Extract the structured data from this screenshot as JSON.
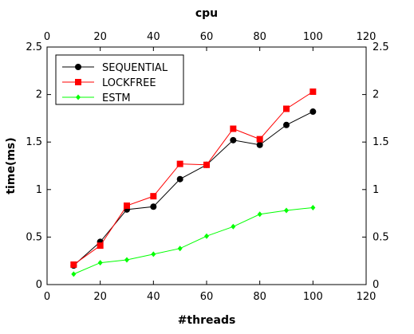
{
  "chart_data": {
    "type": "line",
    "title": "cpu",
    "xlabel": "#threads",
    "ylabel": "time(ms)",
    "xlim": [
      0,
      120
    ],
    "ylim": [
      0,
      2.5
    ],
    "xticks": [
      0,
      20,
      40,
      60,
      80,
      100,
      120
    ],
    "yticks": [
      0,
      0.5,
      1,
      1.5,
      2,
      2.5
    ],
    "xtick_labels": [
      "0",
      "20",
      "40",
      "60",
      "80",
      "100",
      "120"
    ],
    "ytick_labels": [
      "0",
      "0.5",
      "1",
      "1.5",
      "2",
      "2.5"
    ],
    "grid": false,
    "legend_position": "top-left",
    "x": [
      10,
      20,
      30,
      40,
      50,
      60,
      70,
      80,
      90,
      100
    ],
    "series": [
      {
        "name": "SEQUENTIAL",
        "color": "#000000",
        "marker": "circle",
        "values": [
          0.2,
          0.45,
          0.79,
          0.82,
          1.11,
          1.26,
          1.52,
          1.47,
          1.68,
          1.82
        ]
      },
      {
        "name": "LOCKFREE",
        "color": "#ff0000",
        "marker": "square",
        "values": [
          0.21,
          0.41,
          0.83,
          0.93,
          1.27,
          1.26,
          1.64,
          1.53,
          1.85,
          2.03
        ]
      },
      {
        "name": "ESTM",
        "color": "#00ff00",
        "marker": "diamond",
        "values": [
          0.11,
          0.23,
          0.26,
          0.32,
          0.38,
          0.51,
          0.61,
          0.74,
          0.78,
          0.81
        ]
      }
    ]
  }
}
